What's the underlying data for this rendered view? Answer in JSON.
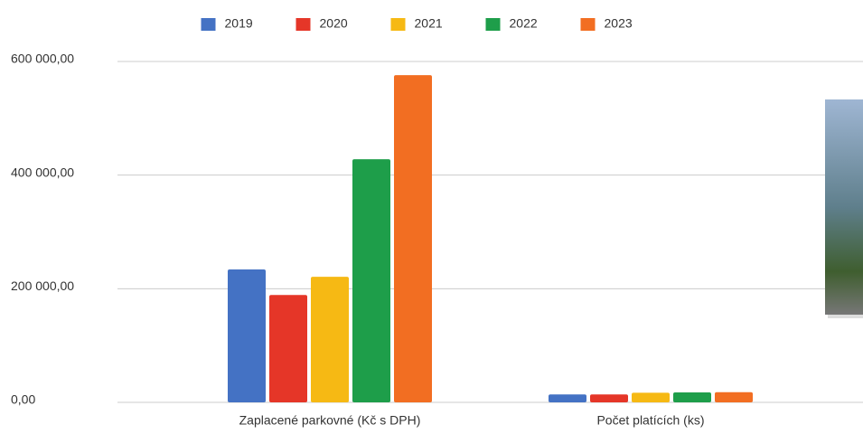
{
  "chart_data": {
    "type": "bar",
    "categories": [
      "Zaplacené parkovné (Kč s DPH)",
      "Počet platících (ks)"
    ],
    "series": [
      {
        "name": "2019",
        "color": "#4472c4",
        "values": [
          234000,
          14000
        ]
      },
      {
        "name": "2020",
        "color": "#e53628",
        "values": [
          189000,
          14000
        ]
      },
      {
        "name": "2021",
        "color": "#f6b914",
        "values": [
          221000,
          17000
        ]
      },
      {
        "name": "2022",
        "color": "#1e9e4a",
        "values": [
          428000,
          17500
        ]
      },
      {
        "name": "2023",
        "color": "#f26e22",
        "values": [
          576000,
          18000
        ]
      }
    ],
    "ylim": [
      0,
      600000
    ],
    "yticks": [
      {
        "value": 0,
        "label": "0,00"
      },
      {
        "value": 200000,
        "label": "200 000,00"
      },
      {
        "value": 400000,
        "label": "400 000,00"
      },
      {
        "value": 600000,
        "label": "600 000,00"
      }
    ],
    "grid": true,
    "legend": "top"
  }
}
